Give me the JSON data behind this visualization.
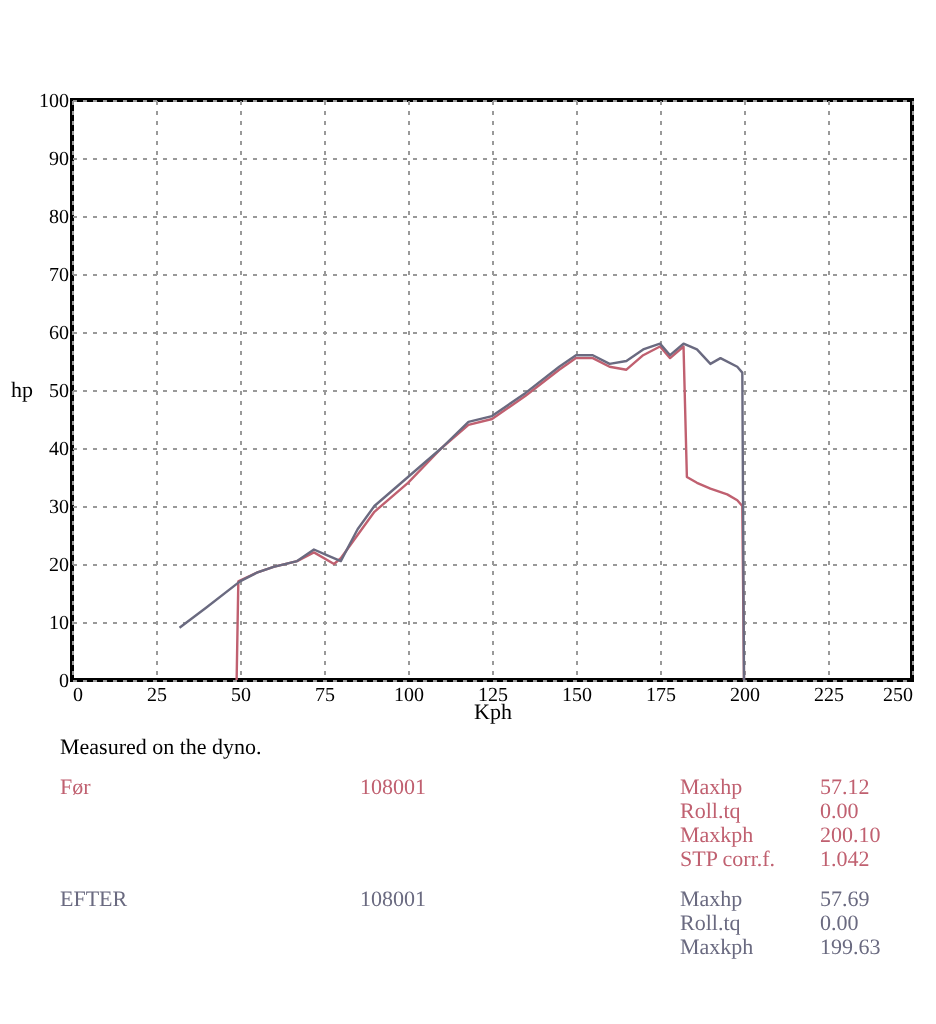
{
  "chart_data": {
    "type": "line",
    "xlabel": "Kph",
    "ylabel": "hp",
    "xlim": [
      0,
      250
    ],
    "xticks": [
      0,
      25,
      50,
      75,
      100,
      125,
      150,
      175,
      200,
      225,
      250
    ],
    "ylim": [
      0,
      100
    ],
    "yticks": [
      0,
      10,
      20,
      30,
      40,
      50,
      60,
      70,
      80,
      90,
      100
    ],
    "grid": true,
    "legend": "bottom",
    "line_style": "solid",
    "series": [
      {
        "name": "Før",
        "color": "#c06070",
        "x": [
          49,
          49.5,
          55,
          60,
          67,
          72,
          78,
          80,
          85,
          90,
          100,
          110,
          118,
          125,
          135,
          145,
          150,
          155,
          160,
          165,
          170,
          175,
          178,
          182,
          183,
          186,
          190,
          195,
          198,
          199.5,
          200
        ],
        "values": [
          0,
          17,
          18.5,
          19.5,
          20.5,
          22,
          20,
          21,
          25,
          29,
          34,
          40,
          44,
          45,
          49,
          53.5,
          55.5,
          55.5,
          54,
          53.5,
          56,
          57.5,
          55.5,
          57.5,
          35,
          34,
          33,
          32,
          31,
          30,
          0
        ]
      },
      {
        "name": "EFTER",
        "color": "#6a6a80",
        "x": [
          32,
          40,
          50,
          55,
          60,
          67,
          72,
          76,
          80,
          85,
          90,
          100,
          110,
          118,
          125,
          135,
          145,
          150,
          155,
          160,
          165,
          170,
          175,
          178,
          182,
          186,
          190,
          193,
          198,
          199.5,
          200
        ],
        "values": [
          9,
          12.5,
          17,
          18.5,
          19.5,
          20.5,
          22.5,
          21.5,
          20.5,
          26,
          30,
          35,
          40,
          44.5,
          45.5,
          49.5,
          54,
          56,
          56,
          54.5,
          55,
          57,
          58,
          56,
          58,
          57,
          54.5,
          55.5,
          54,
          53,
          0
        ]
      }
    ],
    "annotations": [
      "Measured on the dyno.",
      "108001",
      "Maxhp",
      "57.12",
      "Roll.tq",
      "0.00",
      "Maxkph",
      "200.10",
      "STP corr.f.",
      "1.042",
      "108001",
      "Maxhp",
      "57.69",
      "Roll.tq",
      "0.00",
      "Maxkph",
      "199.63"
    ]
  }
}
